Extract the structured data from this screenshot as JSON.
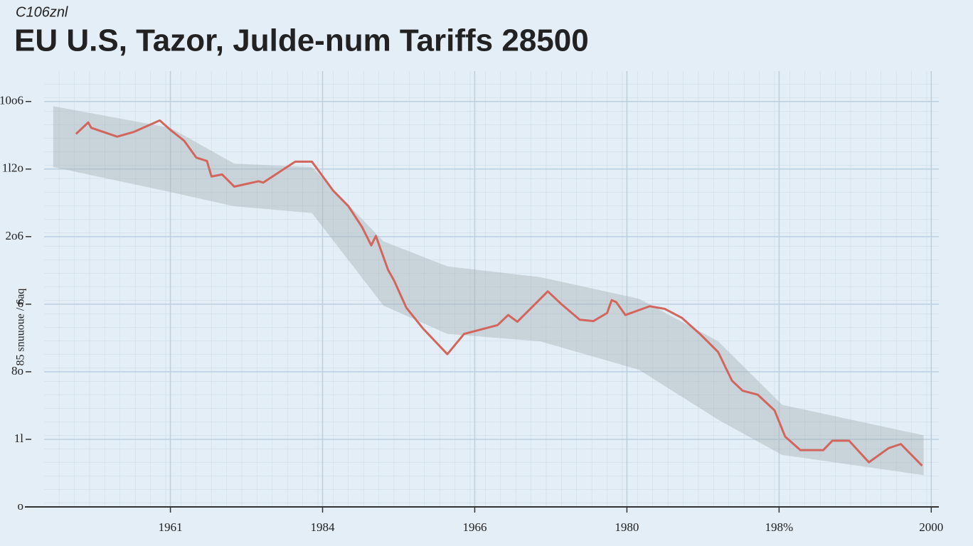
{
  "chart_data": {
    "type": "line",
    "subtitle": "C106znl",
    "title": "EU U.S, Tazor, Julde-num Tariffs 28500",
    "ylabel": "85 snuuoue / 6aq",
    "color": "#d2665c",
    "x": [
      0.38,
      0.46,
      0.48,
      0.65,
      0.76,
      0.93,
      1.0,
      1.09,
      1.17,
      1.24,
      1.27,
      1.34,
      1.42,
      1.58,
      1.61,
      1.82,
      1.93,
      2.07,
      2.17,
      2.26,
      2.32,
      2.35,
      2.43,
      2.47,
      2.55,
      2.66,
      2.82,
      2.93,
      3.15,
      3.22,
      3.28,
      3.48,
      3.57,
      3.69,
      3.78,
      3.87,
      3.9,
      3.93,
      3.99,
      4.15,
      4.25,
      4.36,
      4.48,
      4.6,
      4.69,
      4.76,
      4.86,
      4.97,
      5.04,
      5.14,
      5.29,
      5.35,
      5.46,
      5.59,
      5.72,
      5.8,
      5.94
    ],
    "values": [
      5.52,
      5.69,
      5.61,
      5.48,
      5.55,
      5.72,
      5.58,
      5.42,
      5.17,
      5.12,
      4.89,
      4.92,
      4.74,
      4.82,
      4.8,
      5.11,
      5.11,
      4.68,
      4.45,
      4.14,
      3.87,
      4.01,
      3.51,
      3.35,
      2.95,
      2.64,
      2.26,
      2.56,
      2.69,
      2.84,
      2.74,
      3.19,
      3.0,
      2.77,
      2.75,
      2.87,
      3.06,
      3.03,
      2.84,
      2.97,
      2.93,
      2.8,
      2.56,
      2.29,
      1.87,
      1.72,
      1.66,
      1.43,
      1.04,
      0.84,
      0.84,
      0.98,
      0.98,
      0.66,
      0.87,
      0.93,
      0.61
    ],
    "band": {
      "color": "#a9b1b8",
      "x": [
        0.23,
        1.0,
        1.42,
        1.93,
        2.4,
        2.82,
        3.43,
        4.08,
        4.6,
        5.02,
        5.95
      ],
      "upper": [
        5.93,
        5.61,
        5.08,
        5.03,
        3.93,
        3.56,
        3.4,
        3.08,
        2.45,
        1.51,
        1.06
      ],
      "lower": [
        5.03,
        4.66,
        4.45,
        4.35,
        2.98,
        2.56,
        2.45,
        2.03,
        1.29,
        0.77,
        0.47
      ]
    },
    "xlim": [
      0.17,
      6.05
    ],
    "ylim": [
      0,
      6.45
    ],
    "xticks": [
      {
        "value": 1,
        "label": "1961"
      },
      {
        "value": 2,
        "label": "1984"
      },
      {
        "value": 3,
        "label": "1966"
      },
      {
        "value": 4,
        "label": "1980"
      },
      {
        "value": 5,
        "label": "198%"
      },
      {
        "value": 6,
        "label": "2000"
      }
    ],
    "yticks": [
      {
        "value": 0,
        "label": "o"
      },
      {
        "value": 1,
        "label": "1l"
      },
      {
        "value": 2,
        "label": "8o"
      },
      {
        "value": 3,
        "label": "6"
      },
      {
        "value": 4,
        "label": "2o6"
      },
      {
        "value": 5,
        "label": "1l2o"
      },
      {
        "value": 6,
        "label": "10o6"
      }
    ],
    "grid": true
  }
}
